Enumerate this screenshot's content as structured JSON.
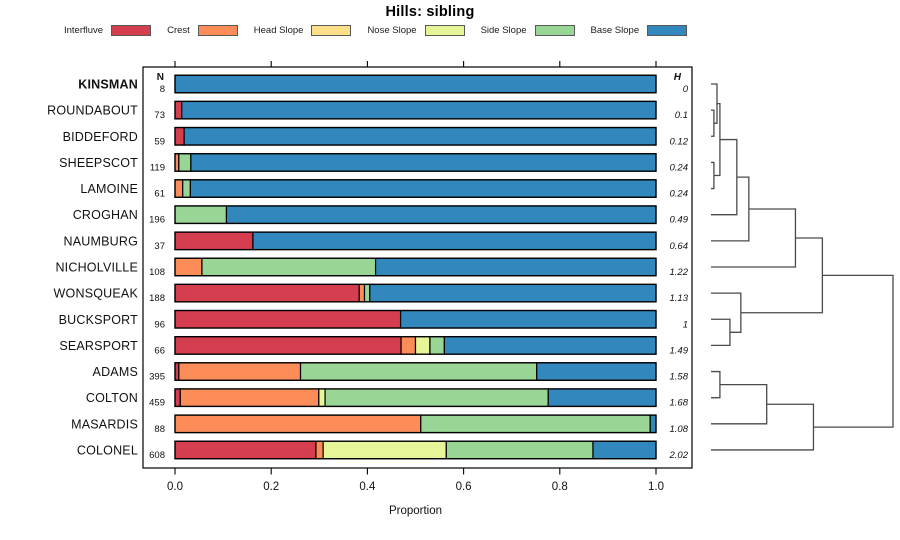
{
  "title": "Hills: sibling",
  "chart_data": {
    "type": "bar",
    "subtype": "horizontal-stacked-proportion-with-dendrogram",
    "title": "Hills: sibling",
    "xlabel": "Proportion",
    "xlim": [
      0,
      1
    ],
    "x_ticks": [
      0,
      0.2,
      0.4,
      0.6,
      0.8,
      1.0
    ],
    "x_tick_labels": [
      "0.0",
      "0.2",
      "0.4",
      "0.6",
      "0.8",
      "1.0"
    ],
    "n_header": "N",
    "h_header": "H",
    "categories": [
      "Interfluve",
      "Crest",
      "Head Slope",
      "Nose Slope",
      "Side Slope",
      "Base Slope"
    ],
    "colors": {
      "Interfluve": "#D53E4F",
      "Crest": "#FC8D59",
      "Head Slope": "#FEE08B",
      "Nose Slope": "#E6F598",
      "Side Slope": "#99D594",
      "Base Slope": "#3288BD"
    },
    "legend_position": "top",
    "grid": false,
    "rows": [
      {
        "name": "KINSMAN",
        "bold": true,
        "n": 8,
        "h": "0",
        "proportions": {
          "Base Slope": 1.0
        }
      },
      {
        "name": "ROUNDABOUT",
        "bold": false,
        "n": 73,
        "h": "0.1",
        "proportions": {
          "Interfluve": 0.014,
          "Base Slope": 0.986
        }
      },
      {
        "name": "BIDDEFORD",
        "bold": false,
        "n": 59,
        "h": "0.12",
        "proportions": {
          "Interfluve": 0.019,
          "Base Slope": 0.981
        }
      },
      {
        "name": "SHEEPSCOT",
        "bold": false,
        "n": 119,
        "h": "0.24",
        "proportions": {
          "Crest": 0.008,
          "Side Slope": 0.025,
          "Base Slope": 0.967
        }
      },
      {
        "name": "LAMOINE",
        "bold": false,
        "n": 61,
        "h": "0.24",
        "proportions": {
          "Crest": 0.016,
          "Side Slope": 0.016,
          "Base Slope": 0.968
        }
      },
      {
        "name": "CROGHAN",
        "bold": false,
        "n": 196,
        "h": "0.49",
        "proportions": {
          "Side Slope": 0.107,
          "Base Slope": 0.893
        }
      },
      {
        "name": "NAUMBURG",
        "bold": false,
        "n": 37,
        "h": "0.64",
        "proportions": {
          "Interfluve": 0.162,
          "Base Slope": 0.838
        }
      },
      {
        "name": "NICHOLVILLE",
        "bold": false,
        "n": 108,
        "h": "1.22",
        "proportions": {
          "Crest": 0.056,
          "Side Slope": 0.361,
          "Base Slope": 0.583
        }
      },
      {
        "name": "WONSQUEAK",
        "bold": false,
        "n": 188,
        "h": "1.13",
        "proportions": {
          "Interfluve": 0.383,
          "Crest": 0.011,
          "Side Slope": 0.011,
          "Base Slope": 0.595
        }
      },
      {
        "name": "BUCKSPORT",
        "bold": false,
        "n": 96,
        "h": "1",
        "proportions": {
          "Interfluve": 0.469,
          "Base Slope": 0.531
        }
      },
      {
        "name": "SEARSPORT",
        "bold": false,
        "n": 66,
        "h": "1.49",
        "proportions": {
          "Interfluve": 0.47,
          "Crest": 0.03,
          "Nose Slope": 0.03,
          "Side Slope": 0.03,
          "Base Slope": 0.44
        }
      },
      {
        "name": "ADAMS",
        "bold": false,
        "n": 395,
        "h": "1.58",
        "proportions": {
          "Interfluve": 0.008,
          "Crest": 0.253,
          "Side Slope": 0.491,
          "Base Slope": 0.248
        }
      },
      {
        "name": "COLTON",
        "bold": false,
        "n": 459,
        "h": "1.68",
        "proportions": {
          "Interfluve": 0.011,
          "Crest": 0.288,
          "Nose Slope": 0.013,
          "Side Slope": 0.464,
          "Base Slope": 0.224
        }
      },
      {
        "name": "MASARDIS",
        "bold": false,
        "n": 88,
        "h": "1.08",
        "proportions": {
          "Crest": 0.511,
          "Side Slope": 0.477,
          "Base Slope": 0.012
        }
      },
      {
        "name": "COLONEL",
        "bold": false,
        "n": 608,
        "h": "2.02",
        "proportions": {
          "Interfluve": 0.293,
          "Crest": 0.015,
          "Nose Slope": 0.256,
          "Side Slope": 0.305,
          "Base Slope": 0.131
        }
      }
    ],
    "dendrogram": {
      "note": "merges = [childA, childB, relative_height]; numeric child = leaf row index, 'C#' = earlier merge",
      "merges": [
        [
          1,
          2,
          0.016
        ],
        [
          0,
          "C0",
          0.033
        ],
        [
          3,
          4,
          0.016
        ],
        [
          "C1",
          "C2",
          0.049
        ],
        [
          "C3",
          5,
          0.142
        ],
        [
          "C4",
          6,
          0.208
        ],
        [
          "C5",
          7,
          0.464
        ],
        [
          9,
          10,
          0.104
        ],
        [
          8,
          "C7",
          0.164
        ],
        [
          "C6",
          "C8",
          0.612
        ],
        [
          11,
          12,
          0.049
        ],
        [
          "C10",
          13,
          0.306
        ],
        [
          "C11",
          14,
          0.563
        ],
        [
          "C9",
          "C12",
          1.0
        ]
      ]
    }
  }
}
